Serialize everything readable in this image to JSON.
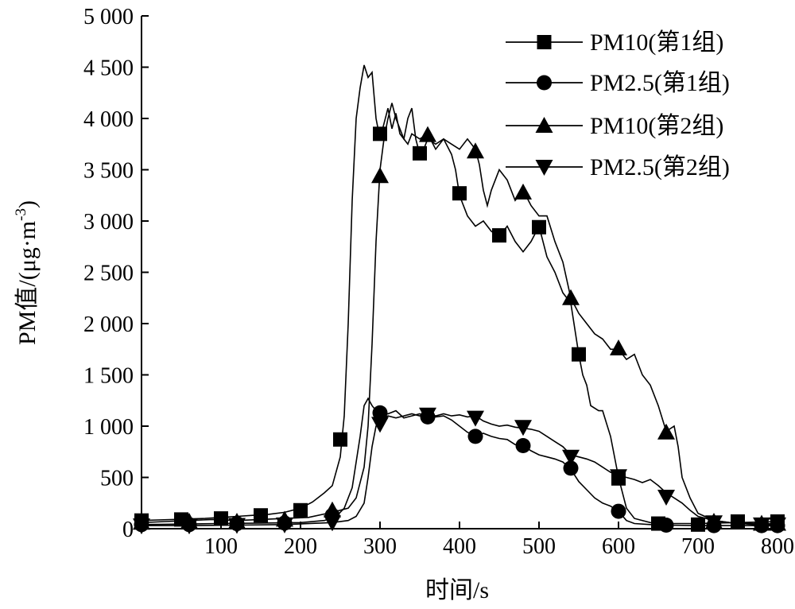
{
  "chart_data": {
    "type": "line",
    "title": "",
    "xlabel": "时间/s",
    "ylabel": "PM值/(μg·m",
    "ylabel_sup": "-3",
    "ylabel_close": ")",
    "xlim": [
      0,
      800
    ],
    "ylim": [
      0,
      5000
    ],
    "x_ticks": [
      100,
      200,
      300,
      400,
      500,
      600,
      700,
      800
    ],
    "x_tick_labels": [
      "100",
      "200",
      "300",
      "400",
      "500",
      "600",
      "700",
      "800"
    ],
    "y_ticks": [
      0,
      500,
      1000,
      1500,
      2000,
      2500,
      3000,
      3500,
      4000,
      4500,
      5000
    ],
    "y_tick_labels": [
      "0",
      "500",
      "1 000",
      "1 500",
      "2 000",
      "2 500",
      "3 000",
      "3 500",
      "4 000",
      "4 500",
      "5 000"
    ],
    "grid": false,
    "legend_position": "top-right",
    "series": [
      {
        "name": "PM10(第1组)",
        "marker": "square",
        "line": [
          [
            0,
            80
          ],
          [
            20,
            85
          ],
          [
            40,
            90
          ],
          [
            60,
            95
          ],
          [
            80,
            100
          ],
          [
            100,
            110
          ],
          [
            120,
            120
          ],
          [
            140,
            130
          ],
          [
            160,
            140
          ],
          [
            180,
            160
          ],
          [
            200,
            200
          ],
          [
            215,
            260
          ],
          [
            230,
            350
          ],
          [
            240,
            420
          ],
          [
            250,
            700
          ],
          [
            255,
            1100
          ],
          [
            260,
            2000
          ],
          [
            265,
            3200
          ],
          [
            270,
            4000
          ],
          [
            275,
            4300
          ],
          [
            280,
            4520
          ],
          [
            285,
            4400
          ],
          [
            290,
            4450
          ],
          [
            295,
            4000
          ],
          [
            300,
            3800
          ],
          [
            305,
            3950
          ],
          [
            310,
            4100
          ],
          [
            315,
            3900
          ],
          [
            320,
            4050
          ],
          [
            325,
            3850
          ],
          [
            330,
            3800
          ],
          [
            335,
            4000
          ],
          [
            340,
            4100
          ],
          [
            345,
            3800
          ],
          [
            350,
            3650
          ],
          [
            355,
            3700
          ],
          [
            360,
            3800
          ],
          [
            370,
            3750
          ],
          [
            380,
            3800
          ],
          [
            390,
            3650
          ],
          [
            395,
            3500
          ],
          [
            400,
            3250
          ],
          [
            410,
            3050
          ],
          [
            420,
            2950
          ],
          [
            430,
            3000
          ],
          [
            440,
            2900
          ],
          [
            450,
            2850
          ],
          [
            460,
            2950
          ],
          [
            470,
            2800
          ],
          [
            480,
            2700
          ],
          [
            490,
            2800
          ],
          [
            500,
            2950
          ],
          [
            505,
            2800
          ],
          [
            510,
            2650
          ],
          [
            520,
            2500
          ],
          [
            530,
            2300
          ],
          [
            540,
            2200
          ],
          [
            550,
            1700
          ],
          [
            555,
            1500
          ],
          [
            560,
            1400
          ],
          [
            565,
            1200
          ],
          [
            575,
            1150
          ],
          [
            580,
            1150
          ],
          [
            590,
            900
          ],
          [
            600,
            500
          ],
          [
            610,
            200
          ],
          [
            620,
            100
          ],
          [
            640,
            60
          ],
          [
            660,
            50
          ],
          [
            700,
            50
          ],
          [
            750,
            60
          ],
          [
            800,
            70
          ]
        ],
        "markers": [
          [
            0,
            80
          ],
          [
            50,
            90
          ],
          [
            100,
            100
          ],
          [
            150,
            130
          ],
          [
            200,
            180
          ],
          [
            250,
            870
          ],
          [
            300,
            3850
          ],
          [
            350,
            3660
          ],
          [
            400,
            3270
          ],
          [
            450,
            2860
          ],
          [
            500,
            2940
          ],
          [
            550,
            1700
          ],
          [
            600,
            490
          ],
          [
            650,
            50
          ],
          [
            700,
            40
          ],
          [
            750,
            70
          ],
          [
            800,
            70
          ]
        ]
      },
      {
        "name": "PM2.5(第1组)",
        "marker": "circle",
        "line": [
          [
            0,
            40
          ],
          [
            50,
            45
          ],
          [
            100,
            50
          ],
          [
            150,
            55
          ],
          [
            200,
            60
          ],
          [
            230,
            80
          ],
          [
            245,
            120
          ],
          [
            255,
            200
          ],
          [
            265,
            400
          ],
          [
            275,
            900
          ],
          [
            280,
            1200
          ],
          [
            285,
            1270
          ],
          [
            290,
            1200
          ],
          [
            295,
            1150
          ],
          [
            300,
            1130
          ],
          [
            310,
            1120
          ],
          [
            320,
            1150
          ],
          [
            330,
            1080
          ],
          [
            340,
            1100
          ],
          [
            350,
            1120
          ],
          [
            360,
            1080
          ],
          [
            370,
            1090
          ],
          [
            380,
            1100
          ],
          [
            390,
            1060
          ],
          [
            400,
            1000
          ],
          [
            410,
            940
          ],
          [
            420,
            910
          ],
          [
            430,
            930
          ],
          [
            440,
            900
          ],
          [
            450,
            880
          ],
          [
            460,
            870
          ],
          [
            470,
            820
          ],
          [
            480,
            810
          ],
          [
            490,
            760
          ],
          [
            500,
            720
          ],
          [
            510,
            700
          ],
          [
            520,
            680
          ],
          [
            530,
            650
          ],
          [
            540,
            580
          ],
          [
            550,
            460
          ],
          [
            560,
            380
          ],
          [
            570,
            300
          ],
          [
            580,
            250
          ],
          [
            590,
            220
          ],
          [
            600,
            170
          ],
          [
            610,
            80
          ],
          [
            620,
            50
          ],
          [
            640,
            40
          ],
          [
            660,
            35
          ],
          [
            700,
            30
          ],
          [
            750,
            30
          ],
          [
            800,
            30
          ]
        ],
        "markers": [
          [
            0,
            40
          ],
          [
            60,
            40
          ],
          [
            120,
            50
          ],
          [
            180,
            55
          ],
          [
            240,
            130
          ],
          [
            300,
            1130
          ],
          [
            360,
            1090
          ],
          [
            420,
            900
          ],
          [
            480,
            810
          ],
          [
            540,
            590
          ],
          [
            600,
            170
          ],
          [
            660,
            35
          ],
          [
            720,
            30
          ],
          [
            780,
            30
          ],
          [
            800,
            30
          ]
        ]
      },
      {
        "name": "PM10(第2组)",
        "marker": "triangle-up",
        "line": [
          [
            0,
            60
          ],
          [
            30,
            70
          ],
          [
            60,
            80
          ],
          [
            90,
            90
          ],
          [
            120,
            80
          ],
          [
            150,
            90
          ],
          [
            180,
            100
          ],
          [
            210,
            110
          ],
          [
            240,
            160
          ],
          [
            260,
            200
          ],
          [
            270,
            300
          ],
          [
            280,
            600
          ],
          [
            285,
            1000
          ],
          [
            290,
            1800
          ],
          [
            295,
            2800
          ],
          [
            300,
            3500
          ],
          [
            305,
            3800
          ],
          [
            310,
            4000
          ],
          [
            315,
            4150
          ],
          [
            320,
            4000
          ],
          [
            325,
            3900
          ],
          [
            330,
            3800
          ],
          [
            335,
            3750
          ],
          [
            340,
            3850
          ],
          [
            350,
            3800
          ],
          [
            360,
            3850
          ],
          [
            370,
            3700
          ],
          [
            380,
            3800
          ],
          [
            390,
            3750
          ],
          [
            400,
            3700
          ],
          [
            410,
            3800
          ],
          [
            420,
            3700
          ],
          [
            425,
            3550
          ],
          [
            430,
            3300
          ],
          [
            435,
            3150
          ],
          [
            440,
            3300
          ],
          [
            450,
            3500
          ],
          [
            460,
            3400
          ],
          [
            470,
            3200
          ],
          [
            480,
            3300
          ],
          [
            490,
            3150
          ],
          [
            500,
            3050
          ],
          [
            510,
            3050
          ],
          [
            520,
            2800
          ],
          [
            530,
            2600
          ],
          [
            540,
            2250
          ],
          [
            550,
            2100
          ],
          [
            560,
            2000
          ],
          [
            570,
            1900
          ],
          [
            580,
            1850
          ],
          [
            590,
            1750
          ],
          [
            600,
            1750
          ],
          [
            610,
            1650
          ],
          [
            620,
            1700
          ],
          [
            630,
            1500
          ],
          [
            640,
            1400
          ],
          [
            650,
            1200
          ],
          [
            660,
            950
          ],
          [
            670,
            1000
          ],
          [
            675,
            800
          ],
          [
            680,
            500
          ],
          [
            690,
            300
          ],
          [
            700,
            150
          ],
          [
            720,
            80
          ],
          [
            740,
            60
          ],
          [
            770,
            50
          ],
          [
            800,
            50
          ]
        ],
        "markers": [
          [
            0,
            60
          ],
          [
            60,
            70
          ],
          [
            120,
            70
          ],
          [
            180,
            90
          ],
          [
            240,
            180
          ],
          [
            300,
            3440
          ],
          [
            360,
            3840
          ],
          [
            420,
            3680
          ],
          [
            480,
            3280
          ],
          [
            540,
            2250
          ],
          [
            600,
            1760
          ],
          [
            660,
            940
          ],
          [
            720,
            70
          ],
          [
            780,
            50
          ],
          [
            800,
            50
          ]
        ]
      },
      {
        "name": "PM2.5(第2组)",
        "marker": "triangle-down",
        "line": [
          [
            0,
            30
          ],
          [
            60,
            30
          ],
          [
            120,
            35
          ],
          [
            180,
            40
          ],
          [
            240,
            60
          ],
          [
            260,
            80
          ],
          [
            270,
            120
          ],
          [
            280,
            250
          ],
          [
            285,
            500
          ],
          [
            290,
            800
          ],
          [
            295,
            1000
          ],
          [
            300,
            1050
          ],
          [
            310,
            1100
          ],
          [
            320,
            1080
          ],
          [
            330,
            1100
          ],
          [
            340,
            1120
          ],
          [
            350,
            1100
          ],
          [
            360,
            1130
          ],
          [
            370,
            1100
          ],
          [
            380,
            1120
          ],
          [
            390,
            1100
          ],
          [
            400,
            1110
          ],
          [
            410,
            1090
          ],
          [
            420,
            1100
          ],
          [
            430,
            1050
          ],
          [
            440,
            1020
          ],
          [
            450,
            1000
          ],
          [
            460,
            1010
          ],
          [
            470,
            990
          ],
          [
            480,
            980
          ],
          [
            490,
            970
          ],
          [
            500,
            950
          ],
          [
            510,
            900
          ],
          [
            520,
            850
          ],
          [
            530,
            800
          ],
          [
            540,
            720
          ],
          [
            550,
            700
          ],
          [
            560,
            680
          ],
          [
            570,
            650
          ],
          [
            580,
            600
          ],
          [
            590,
            550
          ],
          [
            600,
            520
          ],
          [
            610,
            500
          ],
          [
            620,
            480
          ],
          [
            630,
            450
          ],
          [
            640,
            480
          ],
          [
            650,
            420
          ],
          [
            660,
            350
          ],
          [
            670,
            300
          ],
          [
            680,
            250
          ],
          [
            690,
            180
          ],
          [
            700,
            120
          ],
          [
            720,
            80
          ],
          [
            740,
            60
          ],
          [
            770,
            40
          ],
          [
            800,
            40
          ]
        ],
        "markers": [
          [
            0,
            30
          ],
          [
            60,
            30
          ],
          [
            120,
            35
          ],
          [
            180,
            40
          ],
          [
            240,
            60
          ],
          [
            300,
            1020
          ],
          [
            360,
            1110
          ],
          [
            420,
            1080
          ],
          [
            480,
            990
          ],
          [
            540,
            700
          ],
          [
            600,
            510
          ],
          [
            660,
            310
          ],
          [
            720,
            60
          ],
          [
            780,
            40
          ],
          [
            800,
            40
          ]
        ]
      }
    ]
  }
}
